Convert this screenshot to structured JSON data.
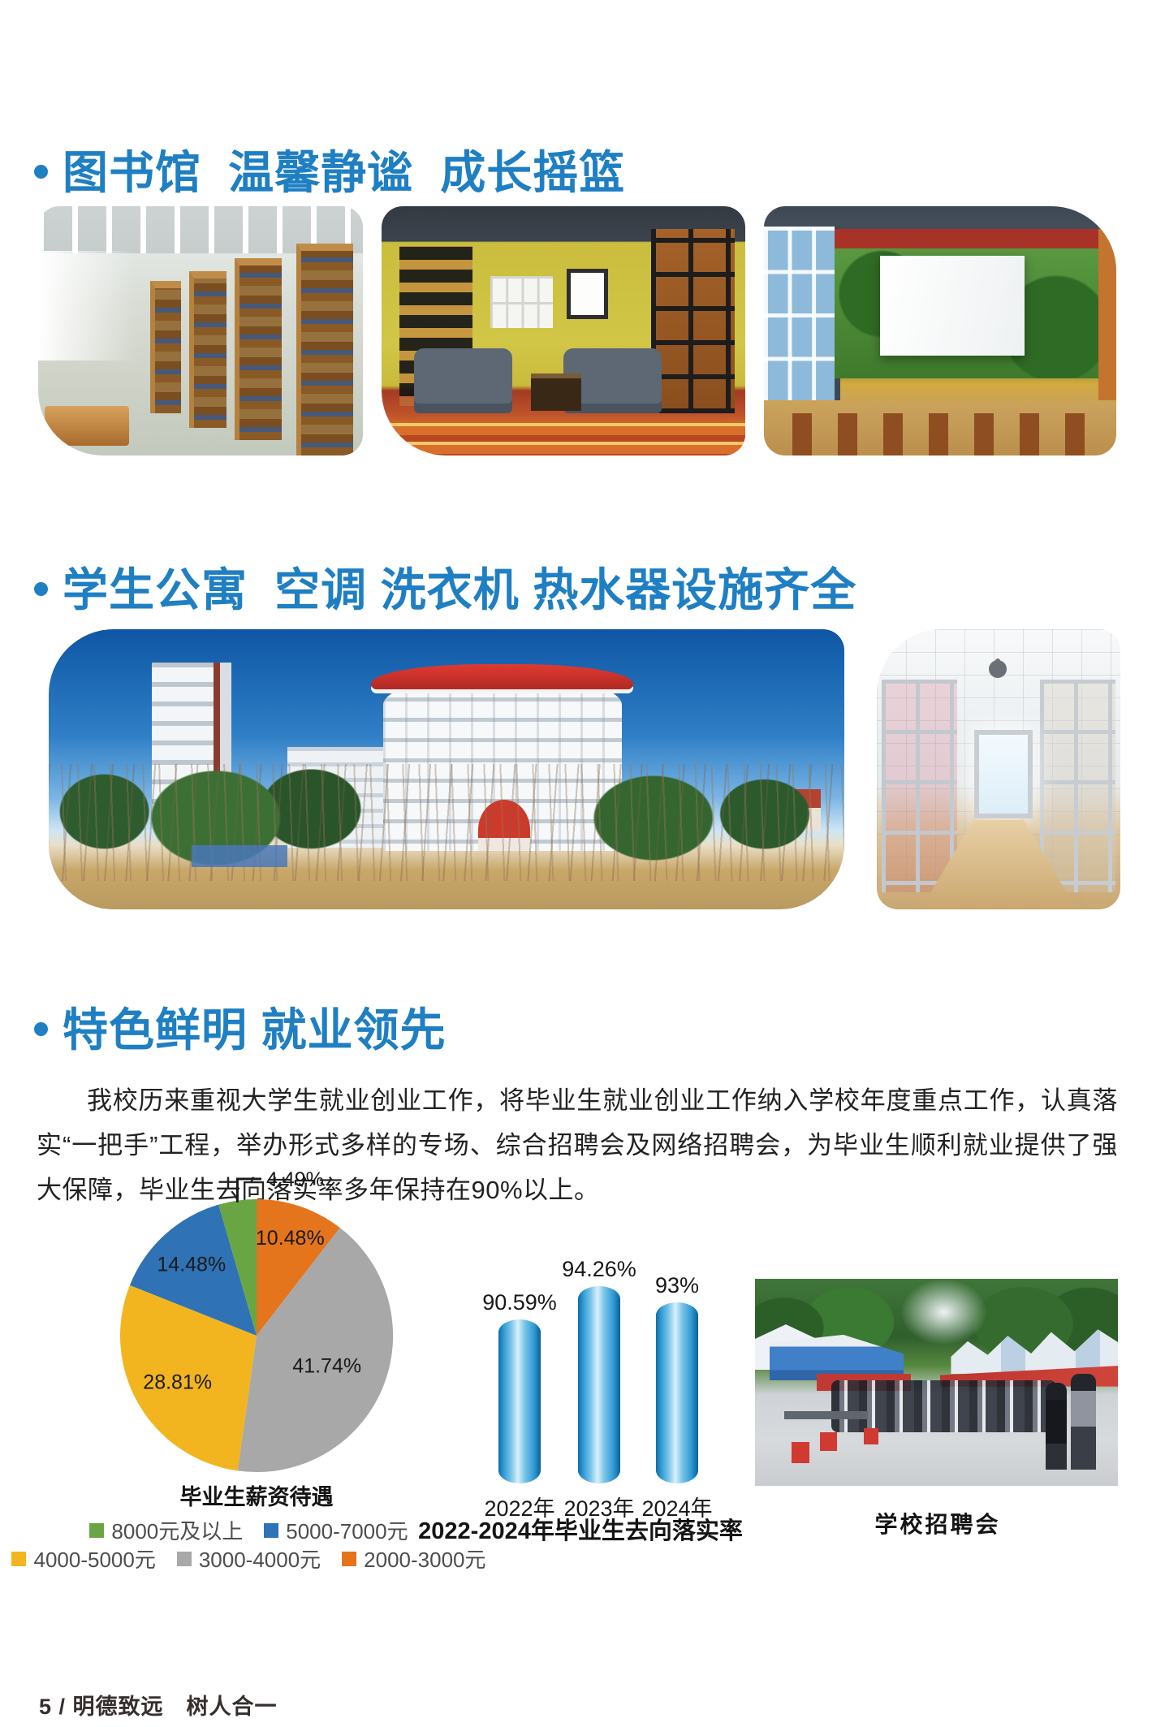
{
  "accent_color": "#1f7fc3",
  "sections": {
    "library": {
      "title": "图书馆  温馨静谧  成长摇篮"
    },
    "dorm": {
      "title": "学生公寓  空调 洗衣机 热水器设施齐全"
    },
    "employment": {
      "title": "特色鲜明 就业领先",
      "paragraph": "我校历来重视大学生就业创业工作，将毕业生就业创业工作纳入学校年度重点工作，认真落实“一把手”工程，举办形式多样的专场、综合招聘会及网络招聘会，为毕业生顺利就业提供了强大保障，毕业生去向落实率多年保持在90%以上。",
      "photo_caption": "学校招聘会"
    }
  },
  "chart_data": [
    {
      "type": "pie",
      "title": "毕业生薪资待遇",
      "direction": "clockwise",
      "start_angle_deg": 0,
      "legend_position": "bottom",
      "slices": [
        {
          "label": "2000-3000元",
          "value": 10.48,
          "display": "10.48%",
          "color": "#e4751c"
        },
        {
          "label": "3000-4000元",
          "value": 41.74,
          "display": "41.74%",
          "color": "#a8a8a8"
        },
        {
          "label": "4000-5000元",
          "value": 28.81,
          "display": "28.81%",
          "color": "#f2b51f"
        },
        {
          "label": "5000-7000元",
          "value": 14.48,
          "display": "14.48%",
          "color": "#2f72b5"
        },
        {
          "label": "8000元及以上",
          "value": 4.49,
          "display": "4.49%",
          "color": "#69a643"
        }
      ],
      "legend_rows": [
        [
          "8000元及以上",
          "5000-7000元"
        ],
        [
          "4000-5000元",
          "3000-4000元",
          "2000-3000元"
        ]
      ]
    },
    {
      "type": "bar",
      "title": "2022-2024年毕业生去向落实率",
      "bar_style": "cylinder",
      "categories": [
        "2022年",
        "2023年",
        "2024年"
      ],
      "values": [
        90.59,
        94.26,
        93
      ],
      "value_labels": [
        "90.59%",
        "94.26%",
        "93%"
      ],
      "bar_color_gradient": [
        "#0e6ca6",
        "#d7f1fc"
      ]
    }
  ],
  "footer": {
    "text": "5 / 明德致远　树人合一"
  }
}
